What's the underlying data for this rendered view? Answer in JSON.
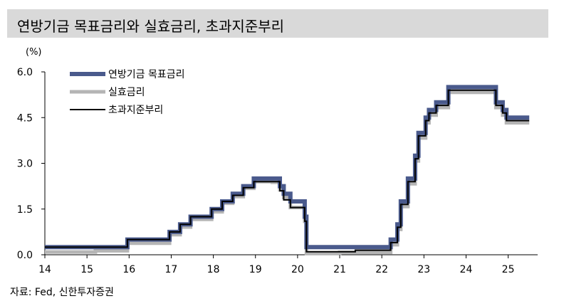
{
  "header": {
    "title": "연방기금 목표금리와 실효금리, 초과지준부리"
  },
  "footer": {
    "source": "자료: Fed, 신한투자증권"
  },
  "chart_data": {
    "type": "line",
    "unit_label": "(%)",
    "xlim": [
      14,
      25.7
    ],
    "ylim": [
      0,
      6.0
    ],
    "y_ticks": [
      "6.0",
      "4.5",
      "3.0",
      "1.5",
      "0.0"
    ],
    "y_tick_values": [
      6.0,
      4.5,
      3.0,
      1.5,
      0.0
    ],
    "x_ticks": [
      "14",
      "15",
      "16",
      "17",
      "18",
      "19",
      "20",
      "21",
      "22",
      "23",
      "24",
      "25"
    ],
    "x_tick_values": [
      14,
      15,
      16,
      17,
      18,
      19,
      20,
      21,
      22,
      23,
      24,
      25
    ],
    "legend_position": "top-left",
    "series": [
      {
        "name": "연방기금 목표금리",
        "color": "#4a5a8c",
        "width": 6,
        "step": true,
        "x": [
          14.0,
          15.96,
          16.96,
          17.21,
          17.46,
          17.96,
          18.21,
          18.46,
          18.71,
          18.96,
          19.58,
          19.67,
          19.83,
          20.17,
          20.21,
          22.21,
          22.37,
          22.45,
          22.62,
          22.79,
          22.87,
          23.04,
          23.12,
          23.29,
          23.58,
          24.71,
          24.87,
          24.96,
          25.5
        ],
        "y": [
          0.25,
          0.5,
          0.75,
          1.0,
          1.25,
          1.5,
          1.75,
          2.0,
          2.25,
          2.5,
          2.25,
          2.0,
          1.75,
          1.25,
          0.25,
          0.5,
          1.0,
          1.75,
          2.5,
          3.25,
          4.0,
          4.5,
          4.75,
          5.0,
          5.5,
          5.0,
          4.75,
          4.5,
          4.5
        ]
      },
      {
        "name": "실효금리",
        "color": "#b5b5b5",
        "width": 5,
        "step": true,
        "x": [
          14.0,
          15.2,
          15.96,
          16.96,
          17.21,
          17.46,
          17.96,
          18.21,
          18.46,
          18.71,
          18.96,
          19.4,
          19.58,
          19.67,
          19.83,
          20.17,
          20.21,
          21.0,
          22.21,
          22.37,
          22.45,
          22.62,
          22.79,
          22.87,
          23.04,
          23.12,
          23.29,
          23.58,
          24.71,
          24.87,
          24.96,
          25.5
        ],
        "y": [
          0.09,
          0.13,
          0.38,
          0.66,
          0.91,
          1.16,
          1.41,
          1.69,
          1.91,
          2.18,
          2.4,
          2.38,
          2.13,
          1.88,
          1.55,
          1.1,
          0.05,
          0.08,
          0.33,
          0.83,
          1.58,
          2.33,
          3.08,
          3.83,
          4.33,
          4.58,
          4.83,
          5.33,
          4.83,
          4.58,
          4.33,
          4.33
        ]
      },
      {
        "name": "초과지준부리",
        "color": "#000000",
        "width": 2,
        "step": true,
        "x": [
          14.0,
          15.96,
          16.96,
          17.21,
          17.46,
          17.96,
          18.21,
          18.46,
          18.71,
          18.96,
          19.58,
          19.67,
          19.83,
          20.17,
          20.21,
          21.37,
          22.21,
          22.37,
          22.45,
          22.62,
          22.79,
          22.87,
          23.04,
          23.12,
          23.29,
          23.58,
          24.71,
          24.87,
          24.96,
          25.5
        ],
        "y": [
          0.25,
          0.5,
          0.75,
          1.0,
          1.25,
          1.5,
          1.75,
          1.95,
          2.2,
          2.4,
          2.1,
          1.8,
          1.55,
          1.1,
          0.1,
          0.15,
          0.4,
          0.9,
          1.65,
          2.4,
          3.15,
          3.9,
          4.4,
          4.65,
          4.9,
          5.4,
          4.9,
          4.65,
          4.4,
          4.4
        ]
      }
    ]
  }
}
